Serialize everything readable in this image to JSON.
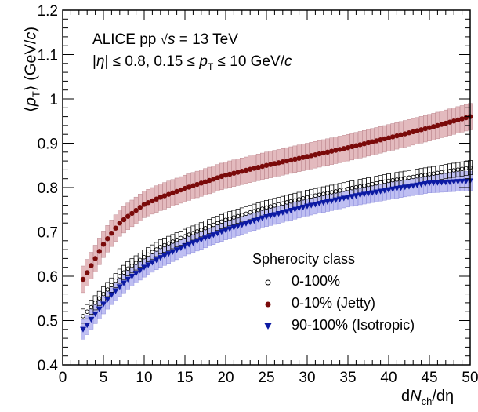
{
  "annotations": {
    "line1_prefix": "ALICE pp ",
    "line1_sqrt": "s",
    "line1_suffix": " = 13 TeV",
    "line2_a": "|",
    "line2_eta": "η",
    "line2_b": "| ≤ 0.8, 0.15 ≤ ",
    "line2_p": "p",
    "line2_sub": "T",
    "line2_c": " ≤ 10 GeV/",
    "line2_unit": "c"
  },
  "axis_labels": {
    "y_open": "⟨",
    "y_p": "p",
    "y_sub": "T",
    "y_close": "⟩ (GeV/",
    "y_c": "c",
    "y_end": ")",
    "x_d": "d",
    "x_N": "N",
    "x_sub": "ch",
    "x_end": "/dη"
  },
  "legend": {
    "title": "Spherocity class",
    "entries": [
      "0-100%",
      "0-10% (Jetty)",
      "90-100% (Isotropic)"
    ]
  },
  "colors": {
    "jetty": "#7a0a0a",
    "jetty_band": "#d9a3a8",
    "isotropic": "#0c1aa3",
    "isotropic_band": "#a9a9ee",
    "all": "#000000"
  },
  "chart_data": {
    "type": "scatter",
    "xlabel": "dN_ch/dη",
    "ylabel": "⟨p_T⟩ (GeV/c)",
    "xlim": [
      0,
      50
    ],
    "ylim": [
      0.4,
      1.2
    ],
    "x_ticks": [
      0,
      5,
      10,
      15,
      20,
      25,
      30,
      35,
      40,
      45,
      50
    ],
    "y_ticks": [
      0.4,
      0.5,
      0.6,
      0.7,
      0.8,
      0.9,
      1,
      1.1,
      1.2
    ],
    "x_start": 2.5,
    "x_step": 0.5,
    "series": [
      {
        "name": "0-100%",
        "marker": "open-circle",
        "band": "open-box",
        "syst": 0.016,
        "y_anchor_x": [
          2.5,
          3,
          4,
          5,
          6,
          7,
          8,
          10,
          12,
          15,
          20,
          25,
          30,
          35,
          40,
          45,
          50
        ],
        "y_anchor": [
          0.51,
          0.52,
          0.54,
          0.56,
          0.58,
          0.6,
          0.617,
          0.643,
          0.666,
          0.69,
          0.727,
          0.755,
          0.778,
          0.797,
          0.815,
          0.83,
          0.845
        ]
      },
      {
        "name": "0-10% (Jetty)",
        "marker": "filled-circle",
        "band": "filled-box",
        "syst": 0.03,
        "y_anchor_x": [
          2.5,
          3,
          4,
          5,
          6,
          7,
          8,
          10,
          12,
          15,
          20,
          25,
          30,
          35,
          40,
          45,
          50
        ],
        "y_anchor": [
          0.593,
          0.608,
          0.64,
          0.672,
          0.697,
          0.72,
          0.735,
          0.762,
          0.778,
          0.798,
          0.828,
          0.85,
          0.87,
          0.89,
          0.912,
          0.935,
          0.96
        ]
      },
      {
        "name": "90-100% (Isotropic)",
        "marker": "filled-triangle-down",
        "band": "filled-box",
        "syst": 0.022,
        "y_anchor_x": [
          2.5,
          3,
          4,
          5,
          6,
          7,
          8,
          10,
          12,
          15,
          20,
          25,
          30,
          35,
          40,
          45,
          50
        ],
        "y_anchor": [
          0.48,
          0.49,
          0.515,
          0.537,
          0.558,
          0.576,
          0.593,
          0.62,
          0.642,
          0.668,
          0.704,
          0.734,
          0.758,
          0.778,
          0.795,
          0.81,
          0.815
        ]
      }
    ]
  }
}
